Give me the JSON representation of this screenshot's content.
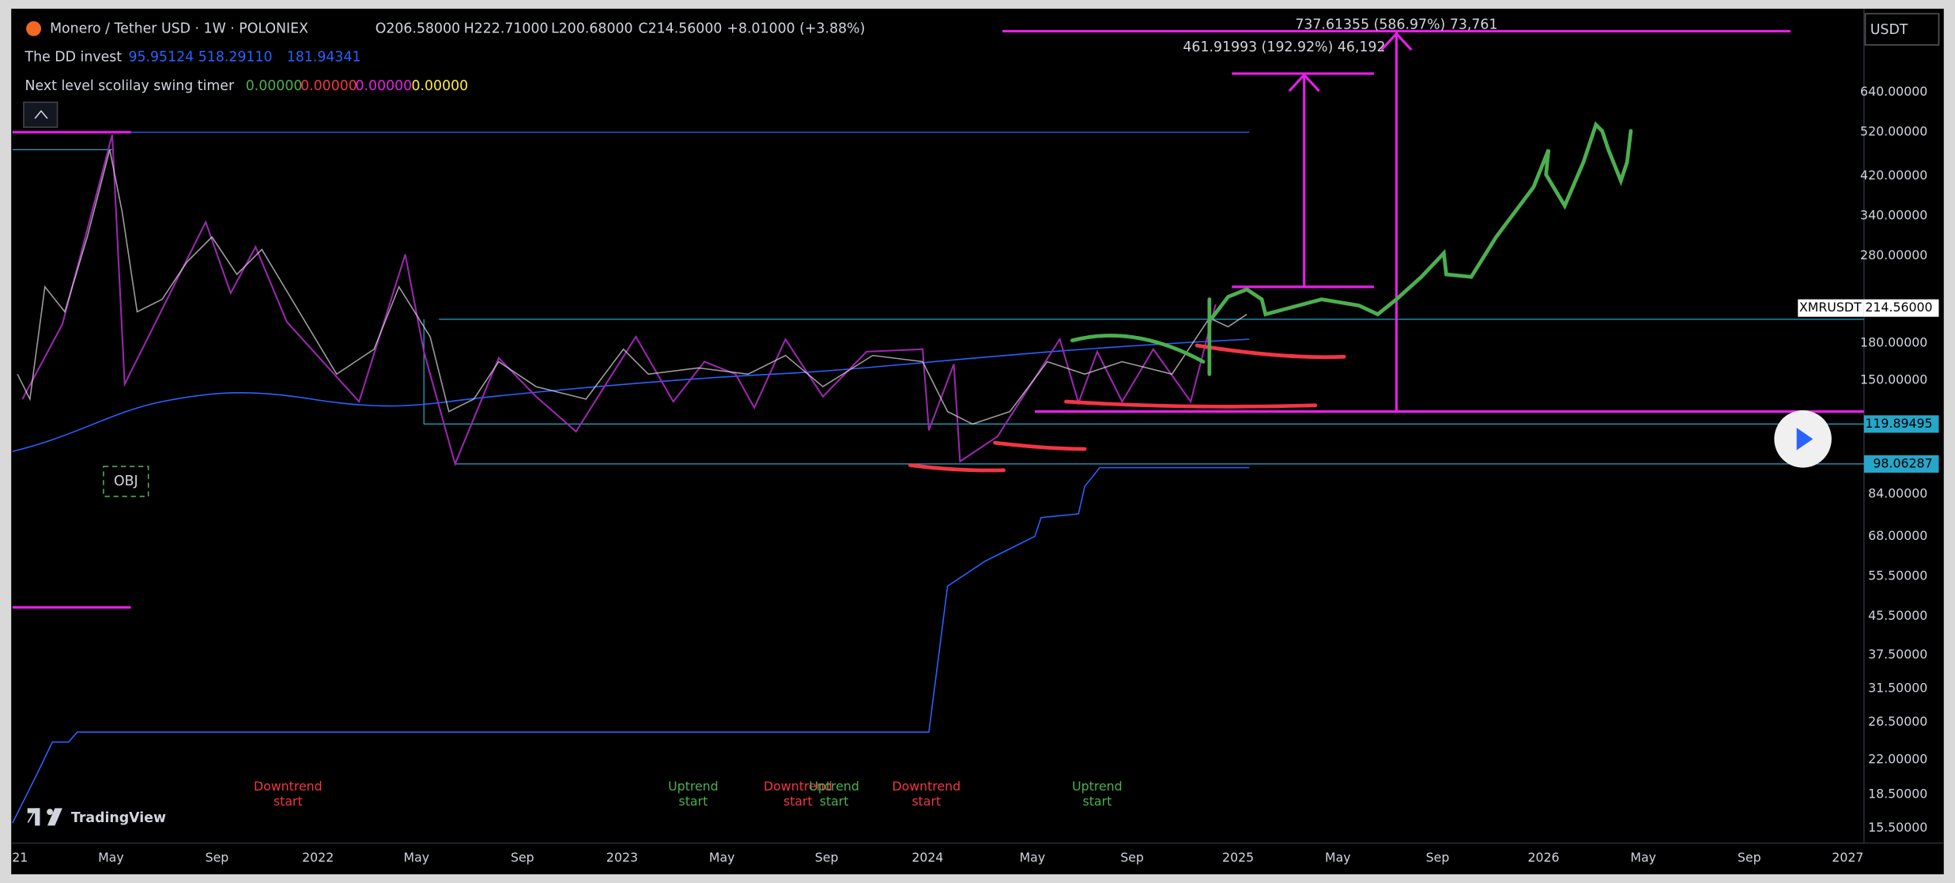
{
  "header": {
    "symbol": "Monero / Tether USD · 1W · POLONIEX",
    "ohlc": [
      "O206.58000",
      "H222.71000",
      "L200.68000",
      "C214.56000",
      "+8.01000 (+3.88%)"
    ]
  },
  "indicators": [
    {
      "name": "The DD invest",
      "values": [
        "95.95124",
        "518.29110",
        "181.94341"
      ]
    },
    {
      "name": "Next level scolilay swing timer",
      "values": [
        "0.00000",
        "0.00000",
        "0.00000",
        "0.00000"
      ]
    }
  ],
  "currency": "USDT",
  "price_axis": [
    "640.00000",
    "520.00000",
    "420.00000",
    "340.00000",
    "280.00000",
    "180.00000",
    "150.00000",
    "84.00000",
    "68.00000",
    "55.50000",
    "45.50000",
    "37.50000",
    "31.50000",
    "26.50000",
    "22.00000",
    "18.50000",
    "15.50000"
  ],
  "price_tags": {
    "symbol": "XMRUSDT",
    "last": "214.56000",
    "levels": [
      "119.89495",
      "98.06287"
    ]
  },
  "time_axis": [
    "21",
    "May",
    "Sep",
    "2022",
    "May",
    "Sep",
    "2023",
    "May",
    "Sep",
    "2024",
    "May",
    "Sep",
    "2025",
    "May",
    "Sep",
    "2026",
    "May",
    "Sep",
    "2027"
  ],
  "measurements": [
    "737.61355 (586.97%) 73,761",
    "461.91993 (192.92%) 46,192"
  ],
  "signals": [
    {
      "text": "Downtrend",
      "sub": "start"
    },
    {
      "text": "Uptrend",
      "sub": "start"
    },
    {
      "text": "Downtrend",
      "sub": "start"
    },
    {
      "text": "Uptrend",
      "sub": "start"
    },
    {
      "text": "Downtrend",
      "sub": "start"
    },
    {
      "text": "Uptrend",
      "sub": "start"
    }
  ],
  "object_label": "OBJ",
  "watermark": "TradingView"
}
